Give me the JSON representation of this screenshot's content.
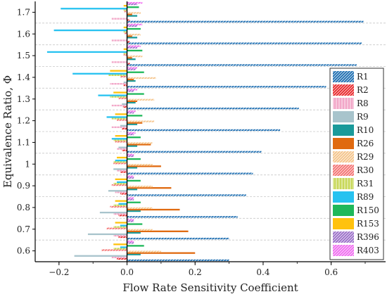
{
  "chart_data": {
    "type": "bar",
    "orientation": "horizontal",
    "title": "",
    "xlabel": "Flow Rate Sensitivity Coefficient",
    "ylabel": "Equivalence Ratio, Φ",
    "xlim": [
      -0.27,
      0.76
    ],
    "xticks": [
      -0.2,
      0.0,
      0.2,
      0.4,
      0.6
    ],
    "xtick_labels": [
      "−0.2",
      "0.0",
      "0.2",
      "0.4",
      "0.6"
    ],
    "categories": [
      "0.6",
      "0.7",
      "0.8",
      "0.9",
      "1",
      "1.1",
      "1.2",
      "1.3",
      "1.4",
      "1.5",
      "1.6",
      "1.7"
    ],
    "grid": "horizontal dashed",
    "legend_position": "right",
    "series": [
      {
        "name": "R1",
        "color": "#1f6fb2",
        "pattern": "diag",
        "values": [
          0.3,
          0.3,
          0.325,
          0.35,
          0.37,
          0.395,
          0.45,
          0.505,
          0.585,
          0.675,
          0.69,
          0.695
        ]
      },
      {
        "name": "R2",
        "color": "#e8282b",
        "pattern": "diag",
        "values": [
          -0.03,
          -0.025,
          -0.025,
          -0.02,
          -0.02,
          -0.015,
          -0.015,
          -0.012,
          -0.01,
          0.008,
          0.008,
          0.008
        ]
      },
      {
        "name": "R8",
        "color": "#f2a7c8",
        "pattern": "vert",
        "values": [
          -0.045,
          -0.04,
          -0.04,
          -0.035,
          -0.03,
          -0.03,
          -0.045,
          -0.045,
          -0.05,
          -0.045,
          -0.045,
          -0.045
        ]
      },
      {
        "name": "R9",
        "color": "#a8c4cc",
        "pattern": "solid",
        "values": [
          -0.155,
          -0.115,
          -0.08,
          -0.055,
          -0.04,
          -0.025,
          -0.02,
          -0.015,
          -0.01,
          0.0,
          0.0,
          0.0
        ]
      },
      {
        "name": "R10",
        "color": "#1a9a9a",
        "pattern": "solid",
        "values": [
          0.04,
          0.04,
          0.04,
          0.03,
          0.03,
          0.03,
          0.03,
          0.025,
          0.025,
          0.025,
          0.03,
          0.03
        ]
      },
      {
        "name": "R26",
        "color": "#e06a10",
        "pattern": "solid",
        "values": [
          0.2,
          0.18,
          0.155,
          0.13,
          0.1,
          0.07,
          0.045,
          0.03,
          0.02,
          0.015,
          0.015,
          0.015
        ]
      },
      {
        "name": "R29",
        "color": "#f5c48a",
        "pattern": "diag",
        "values": [
          0.1,
          0.075,
          0.075,
          0.075,
          0.075,
          0.075,
          0.08,
          0.08,
          0.085,
          0.045,
          0.04,
          0.04
        ]
      },
      {
        "name": "R30",
        "color": "#f47474",
        "pattern": "diag",
        "values": [
          -0.075,
          -0.06,
          -0.05,
          -0.045,
          -0.04,
          -0.035,
          -0.03,
          -0.025,
          -0.02,
          -0.01,
          -0.008,
          -0.008
        ]
      },
      {
        "name": "R31",
        "color": "#c8d85a",
        "pattern": "vert",
        "values": [
          -0.04,
          -0.04,
          -0.04,
          -0.04,
          -0.04,
          -0.04,
          -0.045,
          -0.05,
          -0.055,
          -0.01,
          -0.01,
          -0.01
        ]
      },
      {
        "name": "R89",
        "color": "#27c2f0",
        "pattern": "solid",
        "values": [
          -0.02,
          -0.02,
          -0.025,
          -0.03,
          -0.035,
          -0.045,
          -0.06,
          -0.085,
          -0.16,
          -0.235,
          -0.215,
          -0.195
        ]
      },
      {
        "name": "R150",
        "color": "#1fb85a",
        "pattern": "solid",
        "values": [
          0.05,
          0.045,
          0.04,
          0.04,
          0.04,
          0.04,
          0.045,
          0.05,
          0.05,
          0.045,
          0.04,
          0.035
        ]
      },
      {
        "name": "R153",
        "color": "#ffc20e",
        "pattern": "solid",
        "values": [
          -0.04,
          -0.035,
          -0.035,
          -0.035,
          -0.03,
          -0.035,
          -0.035,
          -0.04,
          -0.05,
          -0.01,
          -0.01,
          -0.01
        ]
      },
      {
        "name": "R396",
        "color": "#9b6fc8",
        "pattern": "diag",
        "values": [
          0.02,
          0.02,
          0.02,
          0.02,
          0.02,
          0.02,
          0.02,
          0.02,
          0.025,
          0.03,
          0.03,
          0.03
        ]
      },
      {
        "name": "R403",
        "color": "#f06cf0",
        "pattern": "diag",
        "values": [
          0.02,
          0.02,
          0.02,
          0.02,
          0.02,
          0.025,
          0.025,
          0.03,
          0.03,
          0.04,
          0.045,
          0.045
        ]
      }
    ]
  }
}
